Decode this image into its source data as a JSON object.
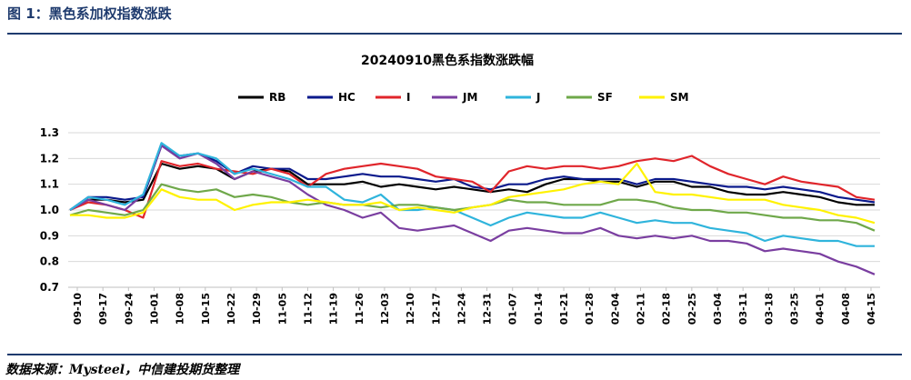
{
  "figure": {
    "label": "图 1：黑色系加权指数涨跌",
    "source": "数据来源：Mysteel，中信建投期货整理"
  },
  "colors": {
    "rule": "#1f3b6e",
    "RB": "#000000",
    "HC": "#0b1a8c",
    "I": "#e0252b",
    "JM": "#7a3ea0",
    "J": "#2fb4dc",
    "SF": "#6fa84a",
    "SM": "#fff200"
  },
  "chart_data": {
    "type": "line",
    "title": "20240910黑色系指数涨跌幅",
    "ylim": [
      0.7,
      1.3
    ],
    "yticks": [
      "1.3",
      "1.2",
      "1.1",
      "1.0",
      "0.9",
      "0.8",
      "0.7"
    ],
    "xticks": [
      "09-10",
      "09-17",
      "09-24",
      "10-01",
      "10-08",
      "10-15",
      "10-22",
      "10-29",
      "11-05",
      "11-12",
      "11-19",
      "11-26",
      "12-03",
      "12-10",
      "12-17",
      "12-24",
      "12-31",
      "01-07",
      "01-14",
      "01-21",
      "01-28",
      "02-04",
      "02-11",
      "02-18",
      "02-25",
      "03-04",
      "03-11",
      "03-18",
      "03-25",
      "04-01",
      "04-08",
      "04-15"
    ],
    "grid": true,
    "legend_position": "top",
    "series": [
      {
        "name": "RB",
        "values": [
          1.0,
          1.04,
          1.04,
          1.03,
          1.04,
          1.18,
          1.16,
          1.17,
          1.16,
          1.12,
          1.15,
          1.16,
          1.15,
          1.1,
          1.1,
          1.1,
          1.11,
          1.09,
          1.1,
          1.09,
          1.08,
          1.09,
          1.08,
          1.07,
          1.08,
          1.07,
          1.1,
          1.12,
          1.12,
          1.11,
          1.11,
          1.09,
          1.11,
          1.11,
          1.09,
          1.09,
          1.07,
          1.06,
          1.06,
          1.07,
          1.06,
          1.05,
          1.03,
          1.02,
          1.02
        ]
      },
      {
        "name": "HC",
        "values": [
          1.0,
          1.05,
          1.05,
          1.04,
          1.05,
          1.25,
          1.21,
          1.22,
          1.19,
          1.14,
          1.17,
          1.16,
          1.16,
          1.12,
          1.12,
          1.13,
          1.14,
          1.13,
          1.13,
          1.12,
          1.11,
          1.12,
          1.09,
          1.08,
          1.1,
          1.1,
          1.12,
          1.13,
          1.12,
          1.12,
          1.12,
          1.1,
          1.12,
          1.12,
          1.11,
          1.1,
          1.09,
          1.09,
          1.08,
          1.09,
          1.08,
          1.07,
          1.05,
          1.04,
          1.03
        ]
      },
      {
        "name": "I",
        "values": [
          1.0,
          1.03,
          1.02,
          1.0,
          0.97,
          1.19,
          1.17,
          1.18,
          1.16,
          1.15,
          1.14,
          1.16,
          1.14,
          1.09,
          1.14,
          1.16,
          1.17,
          1.18,
          1.17,
          1.16,
          1.13,
          1.12,
          1.11,
          1.07,
          1.15,
          1.17,
          1.16,
          1.17,
          1.17,
          1.16,
          1.17,
          1.19,
          1.2,
          1.19,
          1.21,
          1.17,
          1.14,
          1.12,
          1.1,
          1.13,
          1.11,
          1.1,
          1.09,
          1.05,
          1.04
        ]
      },
      {
        "name": "JM",
        "values": [
          1.0,
          1.04,
          1.02,
          1.0,
          1.06,
          1.25,
          1.2,
          1.22,
          1.18,
          1.12,
          1.15,
          1.13,
          1.11,
          1.06,
          1.02,
          1.0,
          0.97,
          0.99,
          0.93,
          0.92,
          0.93,
          0.94,
          0.91,
          0.88,
          0.92,
          0.93,
          0.92,
          0.91,
          0.91,
          0.93,
          0.9,
          0.89,
          0.9,
          0.89,
          0.9,
          0.88,
          0.88,
          0.87,
          0.84,
          0.85,
          0.84,
          0.83,
          0.8,
          0.78,
          0.75
        ]
      },
      {
        "name": "J",
        "values": [
          1.0,
          1.05,
          1.04,
          1.02,
          1.06,
          1.26,
          1.21,
          1.22,
          1.2,
          1.14,
          1.16,
          1.14,
          1.12,
          1.09,
          1.09,
          1.04,
          1.03,
          1.06,
          1.0,
          1.0,
          1.01,
          1.0,
          0.97,
          0.94,
          0.97,
          0.99,
          0.98,
          0.97,
          0.97,
          0.99,
          0.97,
          0.95,
          0.96,
          0.95,
          0.95,
          0.93,
          0.92,
          0.91,
          0.88,
          0.9,
          0.89,
          0.88,
          0.88,
          0.86,
          0.86
        ]
      },
      {
        "name": "SF",
        "values": [
          0.98,
          1.0,
          0.99,
          0.98,
          1.0,
          1.1,
          1.08,
          1.07,
          1.08,
          1.05,
          1.06,
          1.05,
          1.03,
          1.02,
          1.03,
          1.02,
          1.02,
          1.01,
          1.02,
          1.02,
          1.01,
          1.0,
          1.01,
          1.02,
          1.04,
          1.03,
          1.03,
          1.02,
          1.02,
          1.02,
          1.04,
          1.04,
          1.03,
          1.01,
          1.0,
          1.0,
          0.99,
          0.99,
          0.98,
          0.97,
          0.97,
          0.96,
          0.96,
          0.95,
          0.92
        ]
      },
      {
        "name": "SM",
        "values": [
          0.98,
          0.98,
          0.97,
          0.97,
          0.99,
          1.08,
          1.05,
          1.04,
          1.04,
          1.0,
          1.02,
          1.03,
          1.03,
          1.04,
          1.03,
          1.02,
          1.02,
          1.03,
          1.0,
          1.01,
          1.0,
          0.99,
          1.01,
          1.02,
          1.05,
          1.06,
          1.07,
          1.08,
          1.1,
          1.11,
          1.1,
          1.18,
          1.07,
          1.06,
          1.06,
          1.05,
          1.04,
          1.04,
          1.04,
          1.02,
          1.01,
          1.0,
          0.98,
          0.97,
          0.95
        ]
      }
    ]
  }
}
